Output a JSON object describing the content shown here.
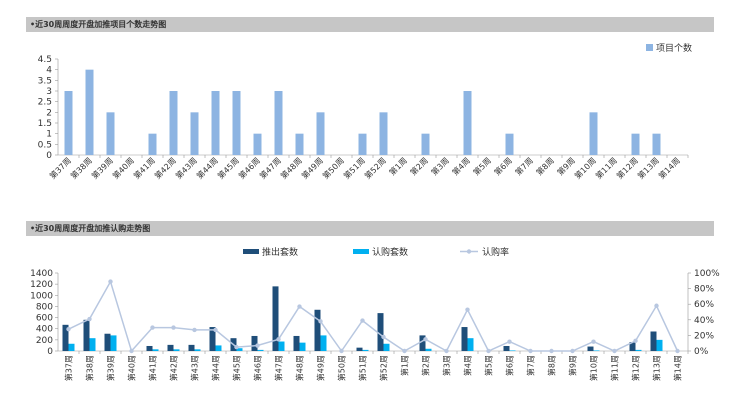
{
  "colors": {
    "header_bg": "#c6c6c6",
    "bar_light": "#8db4e2",
    "bar_dark": "#1f4e79",
    "bar_cyan": "#00b0f0",
    "line": "#b8c7e0"
  },
  "chart_data": [
    {
      "type": "bar",
      "title": "•近30周周度开盘加推项目个数走势图",
      "legend_position": "top-right",
      "ylim": [
        0,
        4.5
      ],
      "yticks": [
        0,
        0.5,
        1,
        1.5,
        2,
        2.5,
        3,
        3.5,
        4,
        4.5
      ],
      "ytick_labels": [
        "0",
        "0.5",
        "1",
        "1.5",
        "2",
        "2.5",
        "3",
        "3.5",
        "4",
        "4.5"
      ],
      "categories": [
        "第37周",
        "第38周",
        "第39周",
        "第40周",
        "第41周",
        "第42周",
        "第43周",
        "第44周",
        "第45周",
        "第46周",
        "第47周",
        "第48周",
        "第49周",
        "第50周",
        "第51周",
        "第52周",
        "第1周",
        "第2周",
        "第3周",
        "第4周",
        "第5周",
        "第6周",
        "第7周",
        "第8周",
        "第9周",
        "第10周",
        "第11周",
        "第12周",
        "第13周",
        "第14周"
      ],
      "series": [
        {
          "name": "项目个数",
          "values": [
            3,
            4,
            2,
            0,
            1,
            3,
            2,
            3,
            3,
            1,
            3,
            1,
            2,
            0,
            1,
            2,
            0,
            1,
            0,
            3,
            0,
            1,
            0,
            0,
            0,
            2,
            0,
            1,
            1,
            0
          ]
        }
      ]
    },
    {
      "type": "bar+line",
      "title": "•近30周周度开盘加推认购走势图",
      "legend_position": "top",
      "ylim_left": [
        0,
        1400
      ],
      "yticks_left": [
        0,
        200,
        400,
        600,
        800,
        1000,
        1200,
        1400
      ],
      "ytick_labels_left": [
        "0",
        "200",
        "400",
        "600",
        "800",
        "1000",
        "1200",
        "1400"
      ],
      "ylim_right": [
        0,
        100
      ],
      "yticks_right": [
        0,
        20,
        40,
        60,
        80,
        100
      ],
      "ytick_labels_right": [
        "0%",
        "20%",
        "40%",
        "60%",
        "80%",
        "100%"
      ],
      "categories": [
        "第37周",
        "第38周",
        "第39周",
        "第40周",
        "第41周",
        "第42周",
        "第43周",
        "第44周",
        "第45周",
        "第46周",
        "第47周",
        "第48周",
        "第49周",
        "第50周",
        "第51周",
        "第52周",
        "第1周",
        "第2周",
        "第3周",
        "第4周",
        "第5周",
        "第6周",
        "第7周",
        "第8周",
        "第9周",
        "第10周",
        "第11周",
        "第12周",
        "第13周",
        "第14周"
      ],
      "series": [
        {
          "name": "推出套数",
          "type": "bar",
          "axis": "left",
          "values": [
            470,
            560,
            310,
            0,
            90,
            110,
            110,
            430,
            230,
            270,
            1160,
            270,
            740,
            0,
            60,
            680,
            0,
            280,
            0,
            430,
            0,
            90,
            0,
            0,
            0,
            80,
            0,
            160,
            350,
            0
          ]
        },
        {
          "name": "认购套数",
          "type": "bar",
          "axis": "left",
          "values": [
            130,
            230,
            280,
            0,
            30,
            30,
            30,
            100,
            50,
            20,
            170,
            150,
            280,
            0,
            20,
            130,
            0,
            40,
            0,
            230,
            0,
            10,
            0,
            0,
            0,
            10,
            0,
            20,
            200,
            0
          ]
        },
        {
          "name": "认购率",
          "type": "line",
          "axis": "right",
          "values": [
            28,
            41,
            89,
            0,
            30,
            30,
            27,
            27,
            5,
            7,
            15,
            57,
            38,
            0,
            39,
            18,
            0,
            15,
            0,
            53,
            0,
            12,
            0,
            0,
            0,
            12,
            0,
            13,
            58,
            0
          ]
        }
      ]
    }
  ]
}
